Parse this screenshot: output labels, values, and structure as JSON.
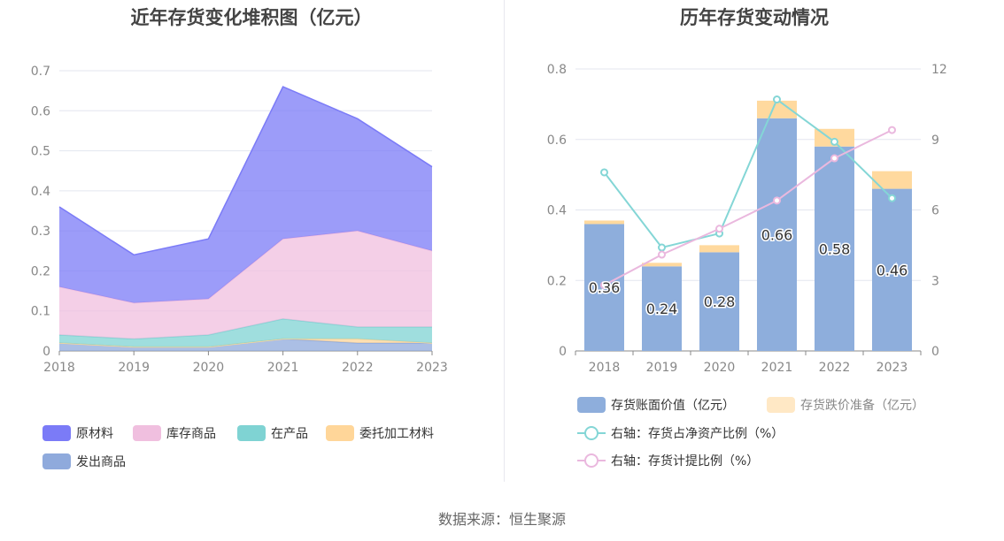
{
  "chart_data": [
    {
      "type": "area",
      "title": "近年存货变化堆积图（亿元）",
      "stacked": true,
      "categories": [
        "2018",
        "2019",
        "2020",
        "2021",
        "2022",
        "2023"
      ],
      "ylim": [
        0,
        0.7
      ],
      "yticks": [
        "0",
        "0.1",
        "0.2",
        "0.3",
        "0.4",
        "0.5",
        "0.6",
        "0.7"
      ],
      "grid": true,
      "legend_position": "bottom",
      "series": [
        {
          "name": "发出商品",
          "color": "#8faadc",
          "values": [
            0.02,
            0.01,
            0.01,
            0.03,
            0.02,
            0.02
          ]
        },
        {
          "name": "委托加工材料",
          "color": "#ffd699",
          "values": [
            0.0,
            0.0,
            0.0,
            0.0,
            0.01,
            0.0
          ]
        },
        {
          "name": "在产品",
          "color": "#7fd3d3",
          "values": [
            0.02,
            0.02,
            0.03,
            0.05,
            0.03,
            0.04
          ]
        },
        {
          "name": "库存商品",
          "color": "#f0bfdf",
          "values": [
            0.12,
            0.09,
            0.09,
            0.2,
            0.24,
            0.19
          ]
        },
        {
          "name": "原材料",
          "color": "#7b7bf7",
          "values": [
            0.2,
            0.12,
            0.15,
            0.38,
            0.28,
            0.21
          ]
        }
      ],
      "legend_order": [
        "原材料",
        "库存商品",
        "在产品",
        "委托加工材料",
        "发出商品"
      ]
    },
    {
      "type": "bar",
      "title": "历年存货变动情况",
      "categories": [
        "2018",
        "2019",
        "2020",
        "2021",
        "2022",
        "2023"
      ],
      "ylim": [
        0,
        0.8
      ],
      "yticks": [
        "0",
        "0.2",
        "0.4",
        "0.6",
        "0.8"
      ],
      "y2lim": [
        0,
        12
      ],
      "y2ticks": [
        "0",
        "3",
        "6",
        "9",
        "12"
      ],
      "grid": true,
      "legend_position": "bottom",
      "series": [
        {
          "name": "存货账面价值（亿元）",
          "kind": "bar",
          "color": "#8eaedc",
          "values": [
            0.36,
            0.24,
            0.28,
            0.66,
            0.58,
            0.46
          ],
          "labels": [
            "0.36",
            "0.24",
            "0.28",
            "0.66",
            "0.58",
            "0.46"
          ]
        },
        {
          "name": "存货跌价准备（亿元）",
          "kind": "bar",
          "color": "#ffd99e",
          "values": [
            0.01,
            0.01,
            0.02,
            0.05,
            0.05,
            0.05
          ]
        },
        {
          "name": "右轴：存货占净资产比例（%）",
          "kind": "line",
          "axis": "right",
          "color": "#84d6d6",
          "values": [
            7.6,
            4.4,
            5.0,
            10.7,
            8.9,
            6.5
          ]
        },
        {
          "name": "右轴：存货计提比例（%）",
          "kind": "line",
          "axis": "right",
          "color": "#eab8de",
          "values": [
            2.8,
            4.1,
            5.2,
            6.4,
            8.2,
            9.4
          ]
        }
      ]
    }
  ],
  "source_text": "数据来源：恒生聚源"
}
